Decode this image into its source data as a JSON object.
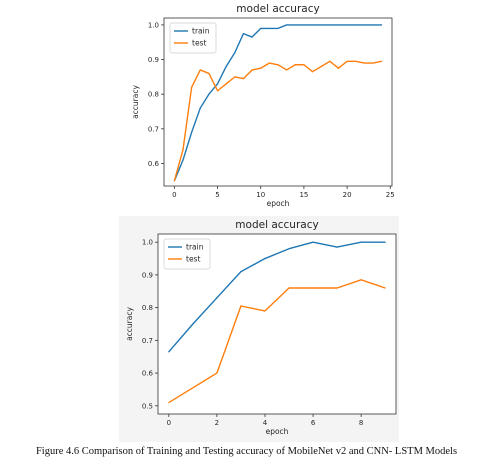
{
  "chart_data": [
    {
      "type": "line",
      "title": "model accuracy",
      "xlabel": "epoch",
      "ylabel": "accuracy",
      "xlim": [
        -1.2,
        25.2
      ],
      "ylim": [
        0.535,
        1.02
      ],
      "xticks": [
        0,
        5,
        10,
        15,
        20,
        25
      ],
      "yticks": [
        0.6,
        0.7,
        0.8,
        0.9,
        1.0
      ],
      "ytick_labels": [
        "0.6",
        "0.7",
        "0.8",
        "0.9",
        "1.0"
      ],
      "grid": false,
      "legend_position": "upper left",
      "series": [
        {
          "name": "train",
          "color": "#1f77b4",
          "x": [
            0,
            1,
            2,
            3,
            4,
            5,
            6,
            7,
            8,
            9,
            10,
            11,
            12,
            13,
            14,
            15,
            16,
            17,
            18,
            19,
            20,
            21,
            22,
            23,
            24
          ],
          "y": [
            0.55,
            0.61,
            0.69,
            0.76,
            0.8,
            0.83,
            0.88,
            0.92,
            0.975,
            0.965,
            0.99,
            0.99,
            0.99,
            1.0,
            1.0,
            1.0,
            1.0,
            1.0,
            1.0,
            1.0,
            1.0,
            1.0,
            1.0,
            1.0,
            1.0
          ]
        },
        {
          "name": "test",
          "color": "#ff7f0e",
          "x": [
            0,
            1,
            2,
            3,
            4,
            5,
            6,
            7,
            8,
            9,
            10,
            11,
            12,
            13,
            14,
            15,
            16,
            17,
            18,
            19,
            20,
            21,
            22,
            23,
            24
          ],
          "y": [
            0.55,
            0.64,
            0.82,
            0.87,
            0.86,
            0.81,
            0.83,
            0.85,
            0.845,
            0.87,
            0.875,
            0.89,
            0.885,
            0.87,
            0.885,
            0.885,
            0.865,
            0.88,
            0.895,
            0.875,
            0.895,
            0.895,
            0.89,
            0.89,
            0.895
          ]
        }
      ]
    },
    {
      "type": "line",
      "title": "model accuracy",
      "xlabel": "epoch",
      "ylabel": "accuracy",
      "xlim": [
        -0.45,
        9.45
      ],
      "ylim": [
        0.475,
        1.025
      ],
      "xticks": [
        0,
        2,
        4,
        6,
        8
      ],
      "yticks": [
        0.5,
        0.6,
        0.7,
        0.8,
        0.9,
        1.0
      ],
      "ytick_labels": [
        "0.5",
        "0.6",
        "0.7",
        "0.8",
        "0.9",
        "1.0"
      ],
      "grid": false,
      "legend_position": "upper left",
      "series": [
        {
          "name": "train",
          "color": "#1f77b4",
          "x": [
            0,
            1,
            2,
            3,
            4,
            5,
            6,
            7,
            8,
            9
          ],
          "y": [
            0.665,
            0.75,
            0.83,
            0.91,
            0.95,
            0.98,
            1.0,
            0.985,
            1.0,
            1.0
          ]
        },
        {
          "name": "test",
          "color": "#ff7f0e",
          "x": [
            0,
            1,
            2,
            3,
            4,
            5,
            6,
            7,
            8,
            9
          ],
          "y": [
            0.51,
            0.555,
            0.6,
            0.805,
            0.79,
            0.86,
            0.86,
            0.86,
            0.885,
            0.86
          ]
        }
      ]
    }
  ],
  "caption": "Figure 4.6  Comparison of Training and Testing accuracy of MobileNet v2 and CNN- LSTM Models"
}
